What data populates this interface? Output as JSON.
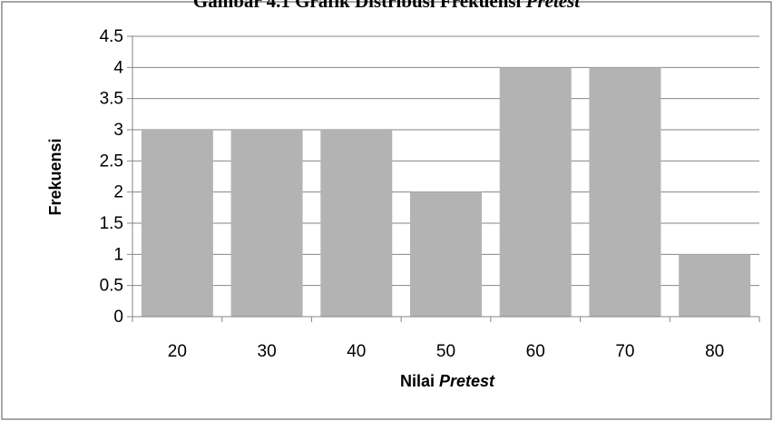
{
  "chart_data": {
    "type": "bar",
    "title_prefix": "Gambar 4.1 Grafik Distribusi Frekuensi ",
    "title_italic": "Pretest",
    "categories": [
      "20",
      "30",
      "40",
      "50",
      "60",
      "70",
      "80"
    ],
    "values": [
      3,
      3,
      3,
      2,
      4,
      4,
      1
    ],
    "ylim": [
      0,
      4.5
    ],
    "y_ticks": [
      "0",
      "0.5",
      "1",
      "1.5",
      "2",
      "2.5",
      "3",
      "3.5",
      "4",
      "4.5"
    ],
    "ylabel": "Frekuensi",
    "xlabel_prefix": "Nilai ",
    "xlabel_italic": "Pretest",
    "grid": true,
    "bar_color": "#b3b3b3",
    "grid_color": "#868686"
  }
}
